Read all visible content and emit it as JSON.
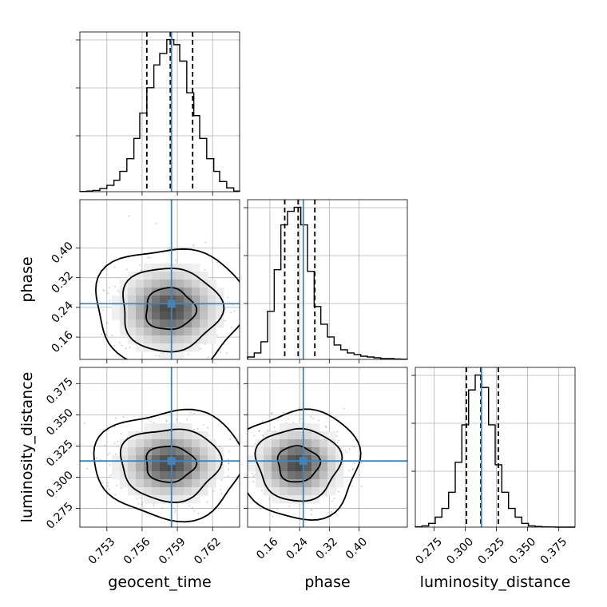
{
  "chart_data": {
    "type": "corner",
    "parameters": [
      {
        "name": "geocent_time",
        "label": "geocent_time",
        "range": [
          0.7507,
          0.7643
        ],
        "ticks": [
          0.753,
          0.756,
          0.759,
          0.762
        ],
        "tick_labels": [
          "0.753",
          "0.756",
          "0.759",
          "0.762"
        ],
        "truth": 0.7585,
        "quantiles": [
          0.7564,
          0.7584,
          0.7603
        ],
        "histogram": {
          "edges": [
            0.7507,
            0.7513,
            0.7518,
            0.7524,
            0.753,
            0.7536,
            0.7541,
            0.7547,
            0.7553,
            0.7558,
            0.7564,
            0.757,
            0.7575,
            0.7581,
            0.7587,
            0.7592,
            0.7598,
            0.7604,
            0.7609,
            0.7615,
            0.7621,
            0.7626,
            0.7632,
            0.7638,
            0.7643
          ],
          "counts": [
            0.2,
            0.5,
            1.0,
            2.5,
            5,
            9,
            16,
            26,
            42,
            62,
            82,
            100,
            109,
            120,
            116,
            103,
            78,
            60,
            42,
            26,
            16,
            8,
            3,
            0.5
          ]
        }
      },
      {
        "name": "phase",
        "label": "phase",
        "range": [
          0.1,
          0.53
        ],
        "ticks": [
          0.16,
          0.24,
          0.32,
          0.4
        ],
        "tick_labels": [
          "0.16",
          "0.24",
          "0.32",
          "0.40"
        ],
        "truth": 0.25,
        "quantiles": [
          0.2,
          0.236,
          0.281
        ],
        "histogram": {
          "edges": [
            0.1,
            0.1179,
            0.1358,
            0.1538,
            0.1717,
            0.1896,
            0.2075,
            0.2254,
            0.2433,
            0.2613,
            0.2792,
            0.2971,
            0.315,
            0.3329,
            0.3508,
            0.3688,
            0.3867,
            0.4046,
            0.4225,
            0.4404,
            0.4583,
            0.4763,
            0.4942,
            0.5121,
            0.53
          ],
          "counts": [
            3,
            8,
            22,
            60,
            112,
            168,
            185,
            190,
            168,
            110,
            66,
            44,
            28,
            18,
            12,
            8,
            6,
            4,
            3,
            2,
            1,
            1,
            0.5,
            0.3
          ]
        }
      },
      {
        "name": "luminosity_distance",
        "label": "luminosity_distance",
        "range": [
          0.26,
          0.388
        ],
        "ticks": [
          0.275,
          0.3,
          0.325,
          0.35,
          0.375
        ],
        "tick_labels": [
          "0.275",
          "0.300",
          "0.325",
          "0.350",
          "0.375"
        ],
        "truth": 0.313,
        "quantiles": [
          0.301,
          0.3125,
          0.3265
        ],
        "histogram": {
          "edges": [
            0.26,
            0.2653,
            0.2707,
            0.276,
            0.2813,
            0.2867,
            0.292,
            0.2973,
            0.3027,
            0.308,
            0.3133,
            0.3187,
            0.324,
            0.3293,
            0.3347,
            0.34,
            0.3453,
            0.3507,
            0.356,
            0.3613,
            0.3667,
            0.372,
            0.3773,
            0.3827,
            0.388
          ],
          "counts": [
            0.3,
            1,
            3,
            8,
            15,
            28,
            52,
            82,
            110,
            122,
            112,
            82,
            50,
            28,
            15,
            8,
            3,
            1,
            0.5,
            0.2,
            0.1,
            0,
            0,
            0
          ]
        }
      }
    ],
    "contour_levels": [
      0.393,
      0.865,
      0.989
    ],
    "grid": true,
    "colors": {
      "hist": "#000000",
      "truth": "#4682b4",
      "quantile": "#000000",
      "grid": "#b0b0b0",
      "scatter": "#000000"
    }
  }
}
